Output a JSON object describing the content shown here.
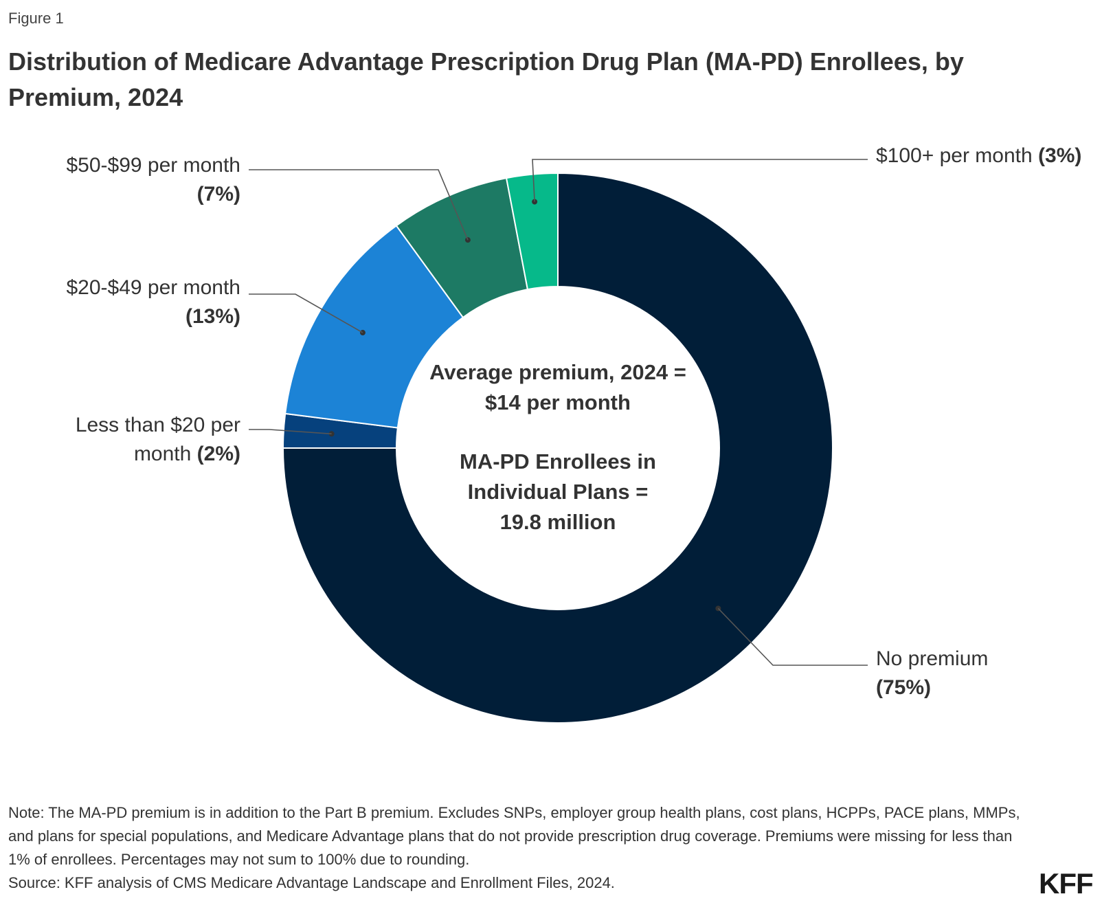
{
  "figure_label": "Figure 1",
  "title": "Distribution of Medicare Advantage Prescription Drug Plan (MA-PD) Enrollees, by Premium, 2024",
  "chart_data": {
    "type": "pie",
    "donut": true,
    "title": "Distribution of Medicare Advantage Prescription Drug Plan (MA-PD) Enrollees, by Premium, 2024",
    "slices": [
      {
        "name": "No premium",
        "value": 75,
        "pct_label": "75%",
        "color": "#011e38"
      },
      {
        "name": "Less than $20 per month",
        "value": 2,
        "pct_label": "2%",
        "color": "#06417d"
      },
      {
        "name": "$20-$49 per month",
        "value": 13,
        "pct_label": "13%",
        "color": "#1c83d6"
      },
      {
        "name": "$50-$99 per month",
        "value": 7,
        "pct_label": "7%",
        "color": "#1d7a64"
      },
      {
        "name": "$100+ per month",
        "value": 3,
        "pct_label": "3%",
        "color": "#06b98a"
      }
    ],
    "labels": [
      {
        "lines": [
          {
            "text": "No premium ",
            "bold": false
          },
          {
            "text": "(75%)",
            "bold": true
          }
        ]
      },
      {
        "lines": [
          {
            "text": "Less than $20 per",
            "bold": false
          },
          {
            "text": "month ",
            "bold": false,
            "bold_tail": "(2%)"
          }
        ]
      },
      {
        "lines": [
          {
            "text": "$20-$49 per month",
            "bold": false
          },
          {
            "text": "(13%)",
            "bold": true
          }
        ]
      },
      {
        "lines": [
          {
            "text": "$50-$99 per month",
            "bold": false
          },
          {
            "text": "(7%)",
            "bold": true
          }
        ]
      },
      {
        "lines": [
          {
            "text": "$100+ per month ",
            "bold": false,
            "bold_tail": "(3%)"
          }
        ]
      }
    ],
    "center_text": {
      "average": [
        "Average premium, 2024 =",
        "$14 per month"
      ],
      "enrollees": [
        "MA-PD Enrollees in",
        "Individual Plans =",
        "19.8 million"
      ]
    }
  },
  "note": "Note: The MA-PD premium is in addition to the Part B premium. Excludes SNPs, employer group health plans, cost plans, HCPPs, PACE plans, MMPs, and plans for special populations, and Medicare Advantage plans that do not provide prescription drug coverage. Premiums were missing for less than 1% of enrollees. Percentages may not sum to 100% due to rounding.",
  "source": "Source: KFF analysis of CMS Medicare Advantage Landscape and Enrollment Files, 2024.",
  "logo": "KFF"
}
